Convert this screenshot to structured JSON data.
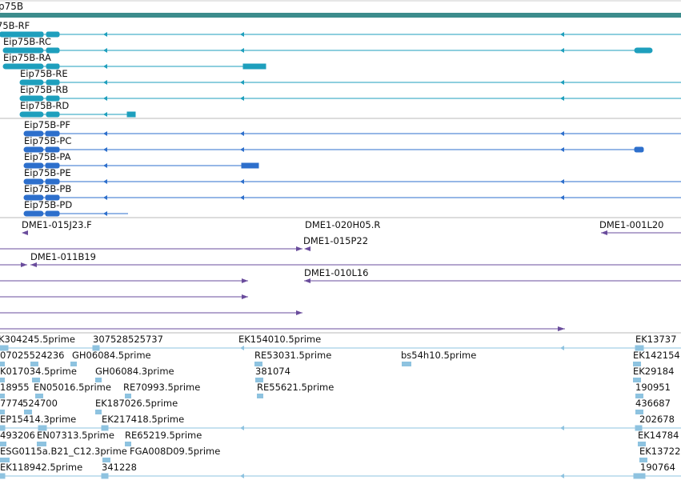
{
  "gene": {
    "label": "p75B",
    "color": "#3c8c8c"
  },
  "colors": {
    "transcript": "#1e9fbd",
    "protein": "#2d6fcc",
    "cdna": "#6a4c9c",
    "est": "#8ec3e0",
    "divider": "#b9b9b9"
  },
  "transcripts": [
    {
      "label": "75B-RF"
    },
    {
      "label": "Eip75B-RC"
    },
    {
      "label": "Eip75B-RA"
    },
    {
      "label": "Eip75B-RE"
    },
    {
      "label": "Eip75B-RB"
    },
    {
      "label": "Eip75B-RD"
    }
  ],
  "proteins": [
    {
      "label": "Eip75B-PF"
    },
    {
      "label": "Eip75B-PC"
    },
    {
      "label": "Eip75B-PA"
    },
    {
      "label": "Eip75B-PE"
    },
    {
      "label": "Eip75B-PB"
    },
    {
      "label": "Eip75B-PD"
    }
  ],
  "cdna_labels": [
    "DME1-015J23.F",
    "DME1-020H05.R",
    "DME1-001L20",
    "DME1-015P22",
    "DME1-011B19",
    "DME1-010L16"
  ],
  "est_labels": [
    "K304245.5prime",
    "307528",
    "525737",
    "EK154010.5prime",
    "EK13737",
    "07025524236",
    "GH06084.5prime",
    "RE53031.5prime",
    "bs54h10.5prime",
    "EK142154",
    "K017034.5prime",
    "GH06084.3prime",
    "381074",
    "EK29184",
    "18955",
    "EN05016.5prime",
    "RE70993.5prime",
    "RE55621.5prime",
    "190951",
    "7774",
    "524700",
    "EK187026.5prime",
    "436687",
    "EP15414.3prime",
    "EK217418.5prime",
    "202678",
    "493206",
    "EN07313.5prime",
    "RE65219.5prime",
    "EK14784",
    "ESG0115a.B21_C12.3prime",
    "FGA008D09.5prime",
    "EK13722",
    "EK118942.5prime",
    "341228",
    "190764"
  ]
}
